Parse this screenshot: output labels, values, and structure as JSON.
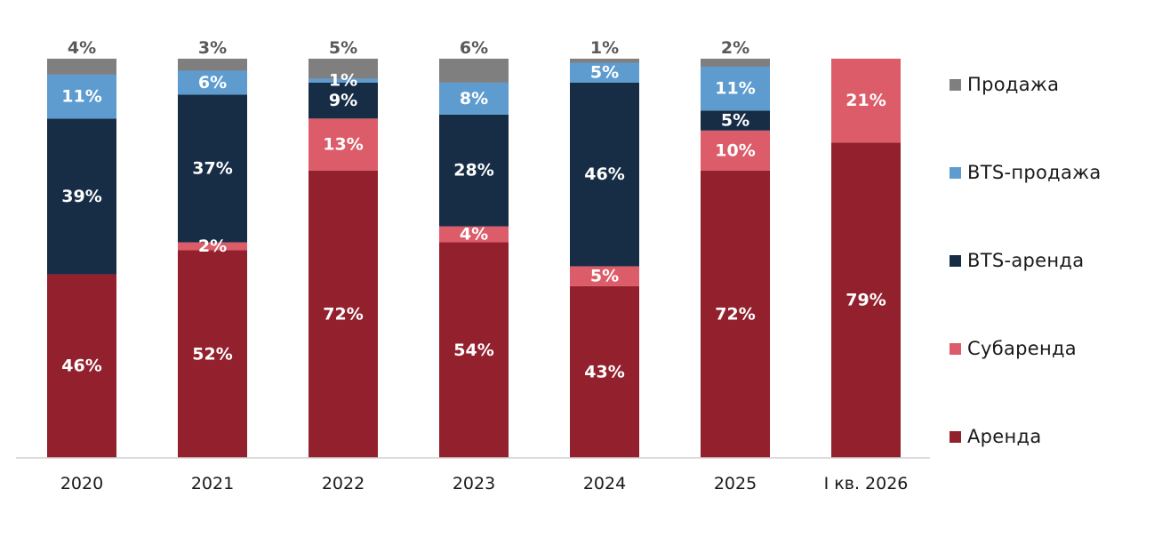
{
  "chart_data": {
    "type": "bar",
    "stacked": true,
    "normalized_percent": true,
    "categories": [
      "2020",
      "2021",
      "2022",
      "2023",
      "2024",
      "2025",
      "I кв. 2026"
    ],
    "series": [
      {
        "name": "Аренда",
        "color": "#92202d",
        "values": [
          46,
          52,
          72,
          54,
          43,
          72,
          79
        ],
        "labels": [
          "46%",
          "52%",
          "72%",
          "54%",
          "43%",
          "72%",
          "79%"
        ]
      },
      {
        "name": "Субаренда",
        "color": "#dc5c69",
        "values": [
          0,
          2,
          13,
          4,
          5,
          10,
          21
        ],
        "labels": [
          "",
          "2%",
          "13%",
          "4%",
          "5%",
          "10%",
          "21%"
        ]
      },
      {
        "name": "BTS-аренда",
        "color": "#172d46",
        "values": [
          39,
          37,
          9,
          28,
          46,
          5,
          0
        ],
        "labels": [
          "39%",
          "37%",
          "9%",
          "28%",
          "46%",
          "5%",
          ""
        ]
      },
      {
        "name": "BTS-продажа",
        "color": "#5e9cd0",
        "values": [
          11,
          6,
          1,
          8,
          5,
          11,
          0
        ],
        "labels": [
          "11%",
          "6%",
          "1%",
          "8%",
          "5%",
          "11%",
          ""
        ]
      },
      {
        "name": "Продажа",
        "color": "#7f7f7f",
        "values": [
          4,
          3,
          5,
          6,
          1,
          2,
          0
        ],
        "labels": [
          "4%",
          "3%",
          "5%",
          "6%",
          "1%",
          "2%",
          ""
        ]
      }
    ],
    "legend_order": [
      "Продажа",
      "BTS-продажа",
      "BTS-аренда",
      "Субаренда",
      "Аренда"
    ],
    "legend_position": "right",
    "ylim": [
      0,
      100
    ],
    "grid": false,
    "title": "",
    "xlabel": "",
    "ylabel": ""
  }
}
